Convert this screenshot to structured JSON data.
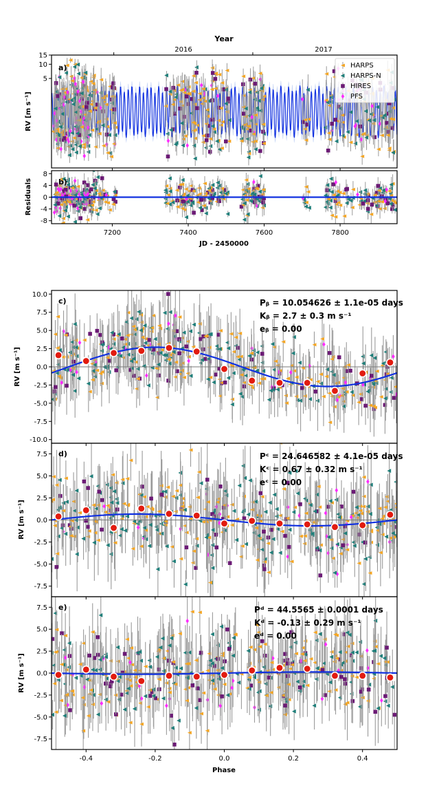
{
  "colors": {
    "harps": "#f5a623",
    "harpsn": "#1f7f7a",
    "hires": "#6b1a75",
    "pfs": "#ff2bff",
    "model": "#1030e0",
    "binned": "#e21b0f",
    "errbar": "#9a9a9a"
  },
  "chart_data": [
    {
      "id": "a",
      "type": "scatter",
      "panel_label": "a)",
      "top_axis_title": "Year",
      "top_ticks": [
        {
          "pos": 7204,
          "label": "2016"
        },
        {
          "pos": 7570,
          "label": "2017"
        }
      ],
      "ylabel": "RV [m s⁻¹]",
      "xlim": [
        7040,
        7950
      ],
      "yticks": [
        {
          "v": 5,
          "label": "5"
        },
        {
          "v": 10,
          "label": "10"
        },
        {
          "v": 15,
          "label": "15"
        }
      ],
      "legend": [
        "HARPS",
        "HARPS-N",
        "HIRES",
        "PFS"
      ],
      "model": "multi-planet Keplerian",
      "symlog": true
    },
    {
      "id": "b",
      "type": "scatter",
      "panel_label": "b)",
      "ylabel": "Residuals",
      "xlabel": "JD - 2450000",
      "xlim": [
        7040,
        7950
      ],
      "ylim": [
        -9,
        9
      ],
      "yticks": [
        -8,
        -4,
        0,
        4,
        8
      ],
      "xticks": [
        7200,
        7400,
        7600,
        7800
      ]
    },
    {
      "id": "c",
      "type": "scatter",
      "panel_label": "c)",
      "ylabel": "RV [m s⁻¹]",
      "xlim": [
        -0.5,
        0.5
      ],
      "ylim": [
        -10.5,
        10.5
      ],
      "yticks": [
        -10.0,
        -7.5,
        -5.0,
        -2.5,
        0.0,
        2.5,
        5.0,
        7.5,
        10.0
      ],
      "annotation": [
        "Pᵦ = 10.054626 ± 1.1e-05 days",
        "Kᵦ = 2.7 ± 0.3 m s⁻¹",
        "eᵦ = 0.00"
      ],
      "amplitude": 2.7,
      "phase_peak": -0.2,
      "binned_x": [
        -0.48,
        -0.4,
        -0.32,
        -0.24,
        -0.16,
        -0.08,
        0.0,
        0.08,
        0.16,
        0.24,
        0.32,
        0.4,
        0.48
      ],
      "binned_y": [
        1.6,
        0.8,
        1.9,
        2.2,
        2.6,
        2.1,
        -0.3,
        -1.9,
        -2.2,
        -2.2,
        -3.3,
        -0.9,
        0.6
      ]
    },
    {
      "id": "d",
      "type": "scatter",
      "panel_label": "d)",
      "ylabel": "RV [m s⁻¹]",
      "xlim": [
        -0.5,
        0.5
      ],
      "ylim": [
        -8.7,
        8.7
      ],
      "yticks": [
        -7.5,
        -5.0,
        -2.5,
        0.0,
        2.5,
        5.0,
        7.5
      ],
      "annotation": [
        "Pᶜ = 24.646582 ± 4.1e-05 days",
        "Kᶜ = 0.67 ± 0.32 m s⁻¹",
        "eᶜ = 0.00"
      ],
      "amplitude": 0.67,
      "phase_peak": -0.25,
      "binned_x": [
        -0.48,
        -0.4,
        -0.32,
        -0.24,
        -0.16,
        -0.08,
        0.0,
        0.08,
        0.16,
        0.24,
        0.32,
        0.4,
        0.48
      ],
      "binned_y": [
        0.4,
        1.1,
        -0.9,
        1.3,
        0.7,
        0.5,
        -0.4,
        -0.1,
        -0.4,
        -0.5,
        -0.8,
        -0.6,
        0.6
      ]
    },
    {
      "id": "e",
      "type": "scatter",
      "panel_label": "e)",
      "ylabel": "RV [m s⁻¹]",
      "xlabel": "Phase",
      "xlim": [
        -0.5,
        0.5
      ],
      "ylim": [
        -8.7,
        8.7
      ],
      "yticks": [
        -7.5,
        -5.0,
        -2.5,
        0.0,
        2.5,
        5.0,
        7.5
      ],
      "xticks": [
        -0.4,
        -0.2,
        0.0,
        0.2,
        0.4
      ],
      "annotation": [
        "Pᵈ = 44.5565 ± 0.0001 days",
        "Kᵈ = -0.13 ± 0.29 m s⁻¹",
        "eᵈ = 0.00"
      ],
      "amplitude": -0.13,
      "phase_peak": -0.25,
      "binned_x": [
        -0.48,
        -0.4,
        -0.32,
        -0.24,
        -0.16,
        -0.08,
        0.0,
        0.08,
        0.16,
        0.24,
        0.32,
        0.4,
        0.48
      ],
      "binned_y": [
        -0.2,
        0.4,
        -0.4,
        -0.9,
        -0.3,
        -0.4,
        -0.2,
        0.3,
        0.6,
        0.5,
        -0.3,
        -0.3,
        -0.5
      ]
    }
  ]
}
